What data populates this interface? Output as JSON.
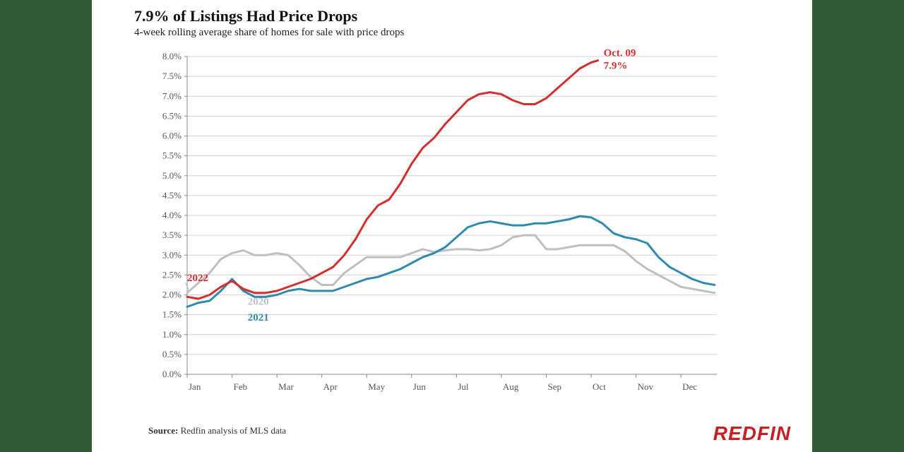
{
  "title": "7.9% of Listings Had Price Drops",
  "subtitle": "4-week rolling average share of homes for sale with price drops",
  "source_label": "Source:",
  "source_text": "Redfin analysis of MLS data",
  "logo": "REDFIN",
  "chart": {
    "type": "line",
    "background_color": "#ffffff",
    "outer_background_color": "#2f5a36",
    "grid_color": "#d0d0d0",
    "axis_color": "#888888",
    "title_fontsize": 22,
    "subtitle_fontsize": 15,
    "tick_fontsize": 13,
    "line_width": 3,
    "x_categories": [
      "Jan",
      "Feb",
      "Mar",
      "Apr",
      "May",
      "Jun",
      "Jul",
      "Aug",
      "Sep",
      "Oct",
      "Nov",
      "Dec"
    ],
    "ylim": [
      0.0,
      8.0
    ],
    "ytick_step": 0.5,
    "y_format": "percent_one_decimal",
    "series": [
      {
        "name": "2020",
        "label": "2020",
        "color": "#bfbfbf",
        "label_pos": {
          "x": 1.35,
          "y": 1.75
        },
        "data": [
          [
            0.0,
            2.05
          ],
          [
            0.25,
            2.3
          ],
          [
            0.5,
            2.55
          ],
          [
            0.75,
            2.9
          ],
          [
            1.0,
            3.05
          ],
          [
            1.25,
            3.12
          ],
          [
            1.5,
            3.0
          ],
          [
            1.75,
            3.0
          ],
          [
            2.0,
            3.05
          ],
          [
            2.25,
            3.0
          ],
          [
            2.5,
            2.75
          ],
          [
            2.75,
            2.45
          ],
          [
            3.0,
            2.25
          ],
          [
            3.25,
            2.25
          ],
          [
            3.5,
            2.55
          ],
          [
            3.75,
            2.75
          ],
          [
            4.0,
            2.95
          ],
          [
            4.25,
            2.95
          ],
          [
            4.5,
            2.95
          ],
          [
            4.75,
            2.95
          ],
          [
            5.0,
            3.05
          ],
          [
            5.25,
            3.15
          ],
          [
            5.5,
            3.08
          ],
          [
            5.75,
            3.12
          ],
          [
            6.0,
            3.15
          ],
          [
            6.25,
            3.15
          ],
          [
            6.5,
            3.12
          ],
          [
            6.75,
            3.15
          ],
          [
            7.0,
            3.25
          ],
          [
            7.25,
            3.45
          ],
          [
            7.5,
            3.5
          ],
          [
            7.75,
            3.5
          ],
          [
            8.0,
            3.15
          ],
          [
            8.25,
            3.15
          ],
          [
            8.5,
            3.2
          ],
          [
            8.75,
            3.25
          ],
          [
            9.0,
            3.25
          ],
          [
            9.25,
            3.25
          ],
          [
            9.5,
            3.25
          ],
          [
            9.75,
            3.1
          ],
          [
            10.0,
            2.85
          ],
          [
            10.25,
            2.65
          ],
          [
            10.5,
            2.5
          ],
          [
            10.75,
            2.35
          ],
          [
            11.0,
            2.2
          ],
          [
            11.25,
            2.15
          ],
          [
            11.5,
            2.1
          ],
          [
            11.75,
            2.05
          ]
        ]
      },
      {
        "name": "2021",
        "label": "2021",
        "color": "#2e8bad",
        "label_pos": {
          "x": 1.35,
          "y": 1.35
        },
        "data": [
          [
            0.0,
            1.7
          ],
          [
            0.25,
            1.8
          ],
          [
            0.5,
            1.85
          ],
          [
            0.75,
            2.1
          ],
          [
            1.0,
            2.4
          ],
          [
            1.25,
            2.1
          ],
          [
            1.5,
            1.95
          ],
          [
            1.75,
            1.95
          ],
          [
            2.0,
            2.0
          ],
          [
            2.25,
            2.1
          ],
          [
            2.5,
            2.15
          ],
          [
            2.75,
            2.1
          ],
          [
            3.0,
            2.1
          ],
          [
            3.25,
            2.1
          ],
          [
            3.5,
            2.2
          ],
          [
            3.75,
            2.3
          ],
          [
            4.0,
            2.4
          ],
          [
            4.25,
            2.45
          ],
          [
            4.5,
            2.55
          ],
          [
            4.75,
            2.65
          ],
          [
            5.0,
            2.8
          ],
          [
            5.25,
            2.95
          ],
          [
            5.5,
            3.05
          ],
          [
            5.75,
            3.2
          ],
          [
            6.0,
            3.45
          ],
          [
            6.25,
            3.7
          ],
          [
            6.5,
            3.8
          ],
          [
            6.75,
            3.85
          ],
          [
            7.0,
            3.8
          ],
          [
            7.25,
            3.75
          ],
          [
            7.5,
            3.75
          ],
          [
            7.75,
            3.8
          ],
          [
            8.0,
            3.8
          ],
          [
            8.25,
            3.85
          ],
          [
            8.5,
            3.9
          ],
          [
            8.75,
            3.98
          ],
          [
            9.0,
            3.95
          ],
          [
            9.25,
            3.8
          ],
          [
            9.5,
            3.55
          ],
          [
            9.75,
            3.45
          ],
          [
            10.0,
            3.4
          ],
          [
            10.25,
            3.3
          ],
          [
            10.5,
            2.95
          ],
          [
            10.75,
            2.7
          ],
          [
            11.0,
            2.55
          ],
          [
            11.25,
            2.4
          ],
          [
            11.5,
            2.3
          ],
          [
            11.75,
            2.25
          ]
        ]
      },
      {
        "name": "2022",
        "label": "2022",
        "color": "#d32f2f",
        "label_pos": {
          "x": 0.0,
          "y": 2.35
        },
        "end_label": {
          "line1": "Oct. 09",
          "line2": "7.9%"
        },
        "data": [
          [
            0.0,
            1.95
          ],
          [
            0.25,
            1.9
          ],
          [
            0.5,
            2.0
          ],
          [
            0.75,
            2.2
          ],
          [
            1.0,
            2.35
          ],
          [
            1.25,
            2.15
          ],
          [
            1.5,
            2.05
          ],
          [
            1.75,
            2.05
          ],
          [
            2.0,
            2.1
          ],
          [
            2.25,
            2.2
          ],
          [
            2.5,
            2.3
          ],
          [
            2.75,
            2.4
          ],
          [
            3.0,
            2.55
          ],
          [
            3.25,
            2.7
          ],
          [
            3.5,
            3.0
          ],
          [
            3.75,
            3.4
          ],
          [
            4.0,
            3.9
          ],
          [
            4.25,
            4.25
          ],
          [
            4.5,
            4.4
          ],
          [
            4.75,
            4.8
          ],
          [
            5.0,
            5.3
          ],
          [
            5.25,
            5.7
          ],
          [
            5.5,
            5.95
          ],
          [
            5.75,
            6.3
          ],
          [
            6.0,
            6.6
          ],
          [
            6.25,
            6.9
          ],
          [
            6.5,
            7.05
          ],
          [
            6.75,
            7.1
          ],
          [
            7.0,
            7.05
          ],
          [
            7.25,
            6.9
          ],
          [
            7.5,
            6.8
          ],
          [
            7.75,
            6.8
          ],
          [
            8.0,
            6.95
          ],
          [
            8.25,
            7.2
          ],
          [
            8.5,
            7.45
          ],
          [
            8.75,
            7.7
          ],
          [
            9.0,
            7.85
          ],
          [
            9.15,
            7.9
          ]
        ]
      }
    ]
  }
}
